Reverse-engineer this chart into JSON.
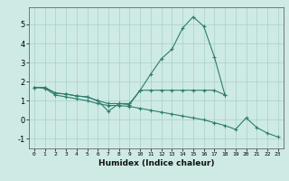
{
  "title": "",
  "xlabel": "Humidex (Indice chaleur)",
  "ylabel": "",
  "background_color": "#ceeae4",
  "grid_color": "#aacfc9",
  "line_color": "#2e7d6e",
  "xlim": [
    -0.5,
    23.5
  ],
  "ylim": [
    -1.5,
    5.9
  ],
  "x": [
    0,
    1,
    2,
    3,
    4,
    5,
    6,
    7,
    8,
    9,
    10,
    11,
    12,
    13,
    14,
    15,
    16,
    17,
    18,
    19,
    20,
    21,
    22,
    23
  ],
  "line1": [
    1.7,
    1.7,
    1.4,
    1.35,
    1.25,
    1.2,
    1.0,
    0.45,
    0.85,
    0.8,
    1.55,
    2.4,
    3.2,
    3.7,
    4.8,
    5.4,
    4.9,
    3.3,
    1.3,
    null,
    null,
    null,
    null,
    null
  ],
  "line2": [
    1.7,
    1.7,
    1.4,
    1.35,
    1.25,
    1.2,
    1.0,
    0.85,
    0.85,
    0.85,
    1.55,
    1.55,
    1.55,
    1.55,
    1.55,
    1.55,
    1.55,
    1.55,
    1.3,
    null,
    null,
    null,
    null,
    null
  ],
  "line3": [
    1.7,
    1.65,
    1.3,
    1.2,
    1.1,
    1.0,
    0.85,
    0.75,
    0.75,
    0.7,
    0.6,
    0.5,
    0.4,
    0.3,
    0.2,
    0.1,
    0.0,
    -0.15,
    -0.3,
    -0.5,
    0.1,
    -0.4,
    -0.7,
    -0.9
  ],
  "yticks": [
    -1,
    0,
    1,
    2,
    3,
    4,
    5
  ],
  "xticks": [
    0,
    1,
    2,
    3,
    4,
    5,
    6,
    7,
    8,
    9,
    10,
    11,
    12,
    13,
    14,
    15,
    16,
    17,
    18,
    19,
    20,
    21,
    22,
    23
  ]
}
